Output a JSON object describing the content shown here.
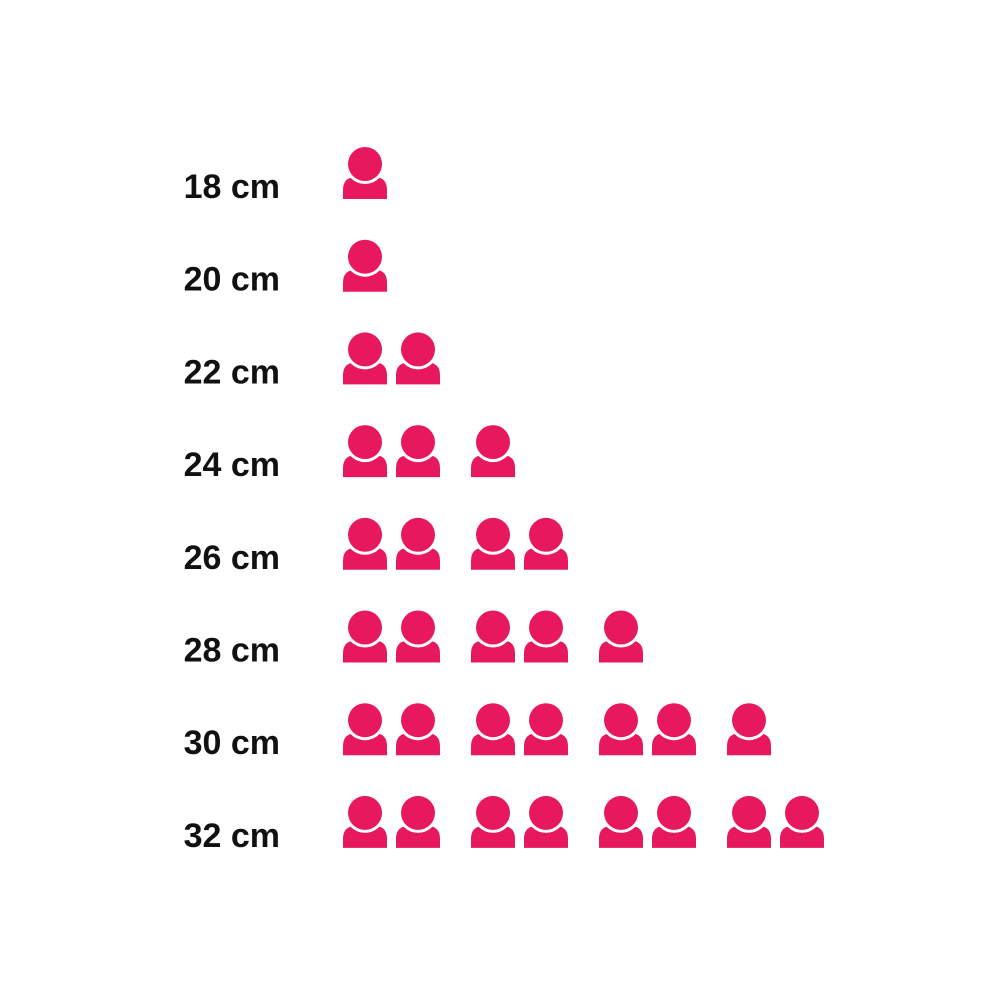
{
  "chart_data": {
    "type": "pictogram",
    "categories": [
      "18 cm",
      "20 cm",
      "22 cm",
      "24 cm",
      "26 cm",
      "28 cm",
      "30 cm",
      "32 cm"
    ],
    "values": [
      1,
      1,
      2,
      3,
      4,
      5,
      7,
      8
    ],
    "icon": "person-icon",
    "icon_color": "#E8185F",
    "title": "",
    "xlabel": "",
    "ylabel": ""
  }
}
